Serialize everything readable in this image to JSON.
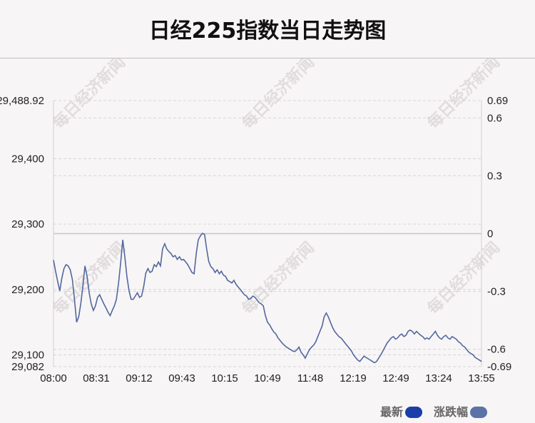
{
  "chart_data": {
    "type": "line",
    "title": "日经225指数当日走势图",
    "watermark": "每日经济新闻",
    "x_ticks": [
      "08:00",
      "08:31",
      "09:12",
      "09:43",
      "10:15",
      "10:49",
      "11:48",
      "12:19",
      "12:49",
      "13:24",
      "13:55"
    ],
    "y_left_ticks": [
      "29,488.92",
      "29,400",
      "29,300",
      "29,200",
      "29,100",
      "29,082"
    ],
    "y_right_ticks": [
      "0.69",
      "0.6",
      "0.3",
      "0",
      "-0.3",
      "-0.6",
      "-0.69"
    ],
    "y_left_range": [
      29082,
      29488.92
    ],
    "y_right_range": [
      -0.69,
      0.69
    ],
    "reference_value": 29289,
    "legend": [
      {
        "label": "最新",
        "color": "#1a3fa8"
      },
      {
        "label": "涨跌幅",
        "color": "#5b73a6"
      }
    ],
    "colors": {
      "line": "#51689e",
      "grid": "#d6d6d6",
      "ref_line": "#c6c6c6"
    },
    "series": [
      {
        "values": [
          29245,
          29228,
          29212,
          29198,
          29218,
          29232,
          29238,
          29236,
          29230,
          29215,
          29185,
          29150,
          29158,
          29178,
          29205,
          29236,
          29220,
          29195,
          29178,
          29168,
          29175,
          29188,
          29192,
          29185,
          29178,
          29172,
          29165,
          29160,
          29168,
          29175,
          29185,
          29210,
          29240,
          29276,
          29250,
          29220,
          29198,
          29185,
          29185,
          29190,
          29195,
          29188,
          29190,
          29205,
          29225,
          29232,
          29226,
          29228,
          29238,
          29235,
          29242,
          29236,
          29262,
          29270,
          29262,
          29258,
          29255,
          29250,
          29252,
          29246,
          29250,
          29245,
          29246,
          29242,
          29238,
          29232,
          29226,
          29224,
          29254,
          29276,
          29282,
          29286,
          29284,
          29262,
          29243,
          29235,
          29232,
          29226,
          29230,
          29224,
          29228,
          29222,
          29220,
          29214,
          29212,
          29210,
          29214,
          29208,
          29204,
          29200,
          29196,
          29192,
          29190,
          29185,
          29186,
          29190,
          29188,
          29184,
          29180,
          29178,
          29175,
          29160,
          29150,
          29146,
          29140,
          29135,
          29132,
          29126,
          29122,
          29118,
          29115,
          29112,
          29110,
          29108,
          29106,
          29105,
          29108,
          29112,
          29104,
          29100,
          29095,
          29102,
          29108,
          29112,
          29115,
          29120,
          29128,
          29136,
          29144,
          29158,
          29164,
          29158,
          29150,
          29142,
          29136,
          29132,
          29128,
          29126,
          29122,
          29118,
          29114,
          29110,
          29106,
          29100,
          29096,
          29092,
          29090,
          29094,
          29098,
          29096,
          29094,
          29092,
          29090,
          29088,
          29090,
          29095,
          29100,
          29106,
          29112,
          29118,
          29122,
          29126,
          29128,
          29124,
          29126,
          29130,
          29132,
          29128,
          29130,
          29136,
          29138,
          29136,
          29132,
          29136,
          29133,
          29130,
          29128,
          29124,
          29126,
          29124,
          29128,
          29132,
          29136,
          29130,
          29126,
          29124,
          29128,
          29130,
          29126,
          29124,
          29128,
          29126,
          29124,
          29120,
          29118,
          29114,
          29112,
          29108,
          29104,
          29102,
          29100,
          29096,
          29094,
          29092,
          29090
        ]
      }
    ]
  }
}
